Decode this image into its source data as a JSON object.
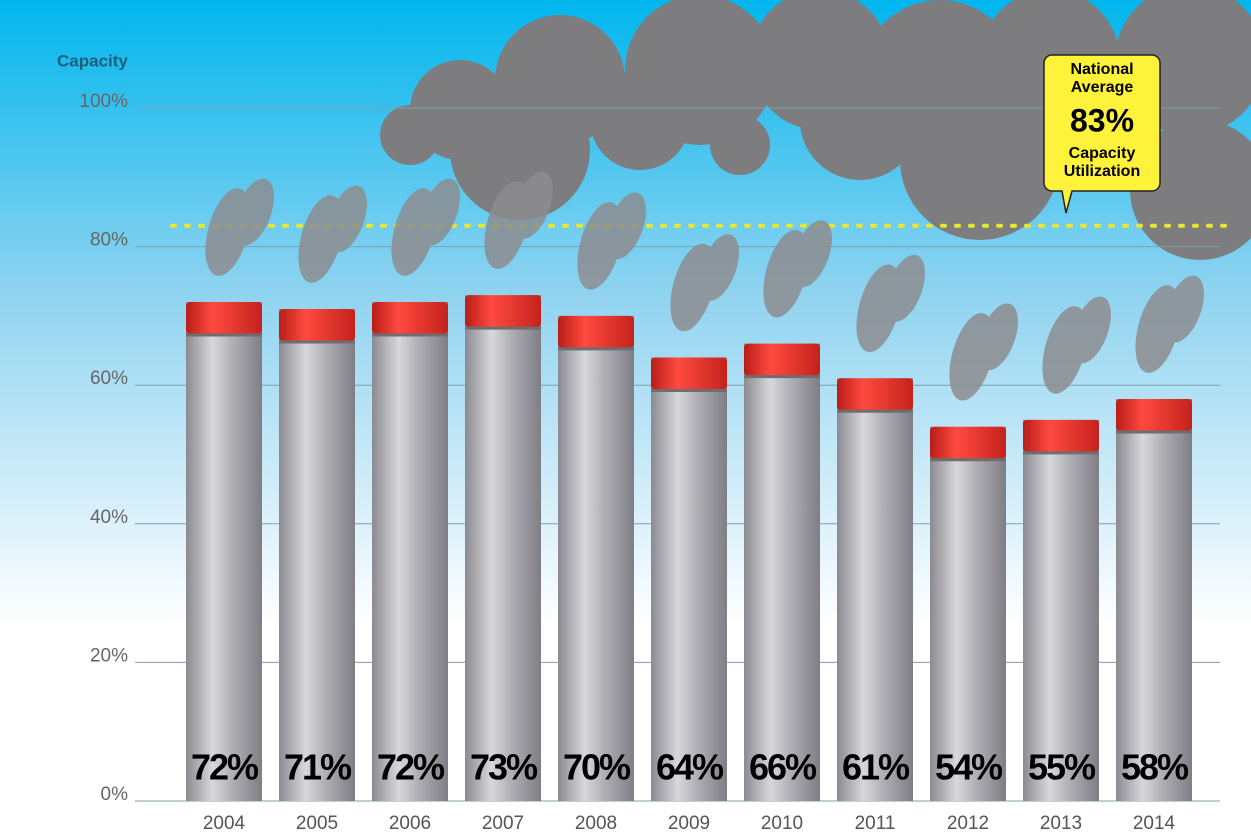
{
  "chart_data": {
    "type": "bar",
    "y_axis_label": "Capacity",
    "categories": [
      "2004",
      "2005",
      "2006",
      "2007",
      "2008",
      "2009",
      "2010",
      "2011",
      "2012",
      "2013",
      "2014"
    ],
    "values": [
      72,
      71,
      72,
      73,
      70,
      64,
      66,
      61,
      54,
      55,
      58
    ],
    "value_labels": [
      "72%",
      "71%",
      "72%",
      "73%",
      "70%",
      "64%",
      "66%",
      "61%",
      "54%",
      "55%",
      "58%"
    ],
    "color": "#a9a9ad",
    "cap_color": "#e8302a",
    "ylim": [
      0,
      100
    ],
    "yticks": [
      {
        "value": 0,
        "label": "0%"
      },
      {
        "value": 20,
        "label": "20%"
      },
      {
        "value": 40,
        "label": "40%"
      },
      {
        "value": 60,
        "label": "60%"
      },
      {
        "value": 80,
        "label": "80%"
      },
      {
        "value": 100,
        "label": "100%"
      }
    ],
    "grid": true,
    "reference_line": {
      "value": 83,
      "label": "83%",
      "color": "#e8e82a",
      "caption_top": [
        "National",
        "Average"
      ],
      "caption_bottom": [
        "Capacity",
        "Utilization"
      ]
    }
  }
}
